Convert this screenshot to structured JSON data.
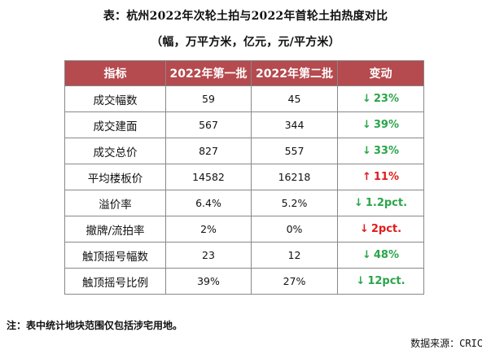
{
  "title": "表：杭州2022年次轮土拍与2022年首轮土拍热度对比",
  "subtitle": "（幅，万平方米，亿元，元/平方米）",
  "table": {
    "headers": [
      "指标",
      "2022年第一批",
      "2022年第二批",
      "变动"
    ],
    "rows": [
      {
        "label": "成交幅数",
        "first": "59",
        "second": "45",
        "change": "23%",
        "direction": "down"
      },
      {
        "label": "成交建面",
        "first": "567",
        "second": "344",
        "change": "39%",
        "direction": "down"
      },
      {
        "label": "成交总价",
        "first": "827",
        "second": "557",
        "change": "33%",
        "direction": "down"
      },
      {
        "label": "平均楼板价",
        "first": "14582",
        "second": "16218",
        "change": "11%",
        "direction": "up"
      },
      {
        "label": "溢价率",
        "first": "6.4%",
        "second": "5.2%",
        "change": "1.2pct.",
        "direction": "down"
      },
      {
        "label": "撤牌/流拍率",
        "first": "2%",
        "second": "0%",
        "change": "2pct.",
        "direction": "down-red"
      },
      {
        "label": "触顶摇号幅数",
        "first": "23",
        "second": "12",
        "change": "48%",
        "direction": "down"
      },
      {
        "label": "触顶摇号比例",
        "first": "39%",
        "second": "27%",
        "change": "12pct.",
        "direction": "down"
      }
    ]
  },
  "colors": {
    "header_bg": "#b54a4f",
    "decrease": "#2aa54a",
    "increase": "#e01b1b"
  },
  "icons": {
    "down": "down-arrow-icon",
    "up": "up-arrow-icon"
  },
  "note": "注：表中统计地块范围仅包括涉宅用地。",
  "source": "数据来源：CRIC"
}
